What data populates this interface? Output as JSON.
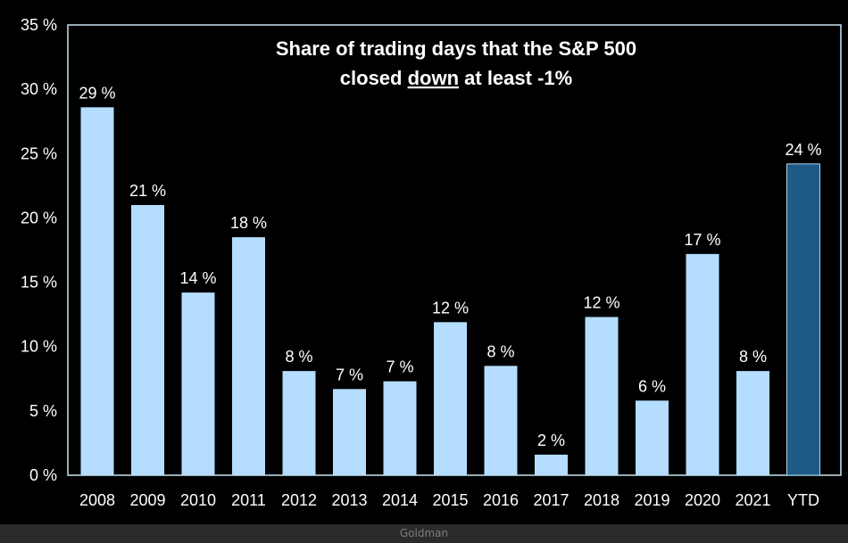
{
  "chart_data": {
    "type": "bar",
    "title_line1": "Share of trading days that the S&P 500",
    "title_line2_pre": "closed ",
    "title_line2_underlined": "down",
    "title_line2_post": " at least -1%",
    "xlabel": "",
    "ylabel": "",
    "ylim": [
      0,
      35
    ],
    "yticks": [
      0,
      5,
      10,
      15,
      20,
      25,
      30,
      35
    ],
    "ytick_labels": [
      "0 %",
      "5 %",
      "10 %",
      "15 %",
      "20 %",
      "25 %",
      "30 %",
      "35 %"
    ],
    "grid": false,
    "categories": [
      "2008",
      "2009",
      "2010",
      "2011",
      "2012",
      "2013",
      "2014",
      "2015",
      "2016",
      "2017",
      "2018",
      "2019",
      "2020",
      "2021",
      "YTD"
    ],
    "values": [
      28.6,
      21.0,
      14.2,
      18.5,
      8.1,
      6.7,
      7.3,
      11.9,
      8.5,
      1.6,
      12.3,
      5.8,
      17.2,
      8.1,
      24.2
    ],
    "value_labels": [
      "29 %",
      "21 %",
      "14 %",
      "18 %",
      "8 %",
      "7 %",
      "7 %",
      "12 %",
      "8 %",
      "2 %",
      "12 %",
      "6 %",
      "17 %",
      "8 %",
      "24 %"
    ],
    "colors": {
      "bar": "#b4ddff",
      "bar_highlight": "#1f5a86",
      "background": "#000000",
      "border": "#c8e6f5",
      "text": "#ffffff"
    },
    "highlight_index": 14
  },
  "caption": "Goldman"
}
